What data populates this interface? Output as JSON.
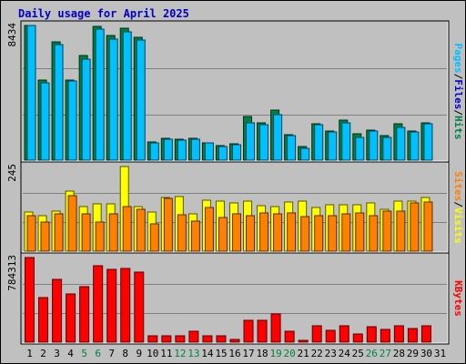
{
  "title": "Daily usage for April 2025",
  "colors": {
    "background": "#c0c0c0",
    "panel_bg": "#c0c0c0",
    "gridline": "#808080",
    "hits": "#008040",
    "files": "#00c0ff",
    "visits": "#ffff00",
    "sites": "#ff8000",
    "kbytes": "#ff0000",
    "title": "#0000c8",
    "weekday": "#000000",
    "weekend": "#008040"
  },
  "chart_data": [
    {
      "type": "bar",
      "panel": "hits-files-pages",
      "ylabel_parts": [
        "Pages",
        "/",
        "Files",
        "/",
        "Hits"
      ],
      "ylabel_colors": [
        "#00c0ff",
        "#000000",
        "#0000c8",
        "#000000",
        "#008040"
      ],
      "y_max_label": "8434",
      "ylim": [
        0,
        8434
      ],
      "categories": [
        "1",
        "2",
        "3",
        "4",
        "5",
        "6",
        "7",
        "8",
        "9",
        "10",
        "11",
        "12",
        "13",
        "14",
        "15",
        "16",
        "17",
        "18",
        "19",
        "20",
        "21",
        "22",
        "23",
        "24",
        "25",
        "26",
        "27",
        "28",
        "29",
        "30",
        "31"
      ],
      "series": [
        {
          "name": "Hits",
          "values": [
            8434,
            5025,
            7430,
            5012,
            6564,
            8356,
            7808,
            8243,
            7682,
            1120,
            1380,
            1300,
            1380,
            1100,
            920,
            1020,
            2720,
            2360,
            3160,
            1570,
            870,
            2270,
            1850,
            2520,
            1680,
            1870,
            1520,
            2270,
            1800,
            2340,
            0
          ]
        },
        {
          "name": "Files",
          "values": [
            8434,
            4850,
            7230,
            4940,
            6350,
            8200,
            7600,
            8060,
            7550,
            1100,
            1330,
            1250,
            1320,
            1080,
            880,
            990,
            2310,
            2240,
            2850,
            1520,
            760,
            2210,
            1780,
            2360,
            1410,
            1800,
            1440,
            2080,
            1740,
            2300,
            0
          ]
        },
        {
          "name": "Pages",
          "values": [
            0,
            0,
            0,
            0,
            0,
            0,
            0,
            0,
            0,
            0,
            0,
            0,
            0,
            0,
            0,
            0,
            0,
            0,
            0,
            0,
            0,
            0,
            0,
            0,
            0,
            0,
            0,
            0,
            0,
            0,
            0
          ]
        }
      ]
    },
    {
      "type": "bar",
      "panel": "visits-sites",
      "ylabel_parts": [
        "Sites",
        "/",
        "Visits"
      ],
      "ylabel_colors": [
        "#ff8000",
        "#000000",
        "#ffff00"
      ],
      "y_max_label": "245",
      "ylim": [
        0,
        245
      ],
      "categories": [
        "1",
        "2",
        "3",
        "4",
        "5",
        "6",
        "7",
        "8",
        "9",
        "10",
        "11",
        "12",
        "13",
        "14",
        "15",
        "16",
        "17",
        "18",
        "19",
        "20",
        "21",
        "22",
        "23",
        "24",
        "25",
        "26",
        "27",
        "28",
        "29",
        "30",
        "31"
      ],
      "series": [
        {
          "name": "Visits",
          "values": [
            114,
            104,
            117,
            175,
            129,
            136,
            136,
            245,
            130,
            112,
            156,
            158,
            108,
            148,
            144,
            140,
            145,
            132,
            130,
            143,
            145,
            126,
            134,
            134,
            134,
            139,
            120,
            144,
            144,
            155,
            0
          ]
        },
        {
          "name": "Sites",
          "values": [
            103,
            85,
            107,
            162,
            107,
            85,
            108,
            128,
            122,
            80,
            154,
            105,
            88,
            126,
            98,
            109,
            104,
            110,
            109,
            111,
            101,
            103,
            103,
            109,
            110,
            103,
            116,
            115,
            140,
            141,
            0
          ]
        }
      ]
    },
    {
      "type": "bar",
      "panel": "kbytes",
      "ylabel_parts": [
        "KBytes"
      ],
      "ylabel_colors": [
        "#ff0000"
      ],
      "y_max_label": "784313",
      "ylim": [
        0,
        784313
      ],
      "categories": [
        "1",
        "2",
        "3",
        "4",
        "5",
        "6",
        "7",
        "8",
        "9",
        "10",
        "11",
        "12",
        "13",
        "14",
        "15",
        "16",
        "17",
        "18",
        "19",
        "20",
        "21",
        "22",
        "23",
        "24",
        "25",
        "26",
        "27",
        "28",
        "29",
        "30",
        "31"
      ],
      "series": [
        {
          "name": "KBytes",
          "values": [
            784313,
            416000,
            580000,
            444000,
            518000,
            710000,
            674000,
            686000,
            652000,
            62000,
            62000,
            62000,
            100000,
            62000,
            62000,
            22000,
            200000,
            200000,
            258000,
            100000,
            8000,
            152000,
            112000,
            152000,
            78000,
            146000,
            114000,
            154000,
            128000,
            154000,
            0
          ]
        }
      ]
    }
  ],
  "x_labels": [
    "1",
    "2",
    "3",
    "4",
    "5",
    "6",
    "7",
    "8",
    "9",
    "10",
    "11",
    "12",
    "13",
    "14",
    "15",
    "16",
    "17",
    "18",
    "19",
    "20",
    "21",
    "22",
    "23",
    "24",
    "25",
    "26",
    "27",
    "28",
    "29",
    "30",
    "31"
  ],
  "weekend_days": [
    5,
    6,
    12,
    13,
    19,
    20,
    26,
    27
  ]
}
